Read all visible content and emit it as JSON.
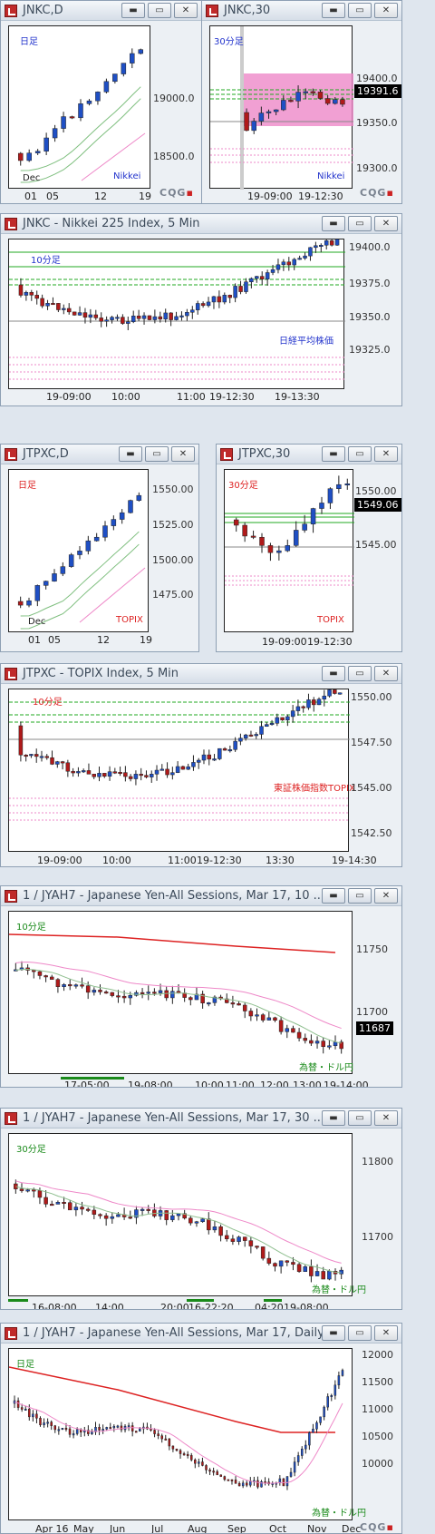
{
  "windows": [
    {
      "title": "JNKC,D",
      "period": "日足",
      "name": "Nikkei",
      "ylabels": [
        "19000.0",
        "18500.0"
      ],
      "xlabels": [
        "Dec",
        "01",
        "05",
        "12",
        "19"
      ],
      "logo": "CQG"
    },
    {
      "title": "JNKC,30",
      "period": "30分足",
      "name": "Nikkei",
      "ylabels": [
        "19400.0",
        "19350.0",
        "19300.0"
      ],
      "price": "19391.6",
      "xlabels": [
        "19-09:00",
        "19-12:30"
      ],
      "logo": "CQG"
    },
    {
      "title": "JNKC - Nikkei 225 Index, 5 Min",
      "period": "10分足",
      "name": "日経平均株価",
      "ylabels": [
        "19400.0",
        "19375.0",
        "19350.0",
        "19325.0"
      ],
      "xlabels": [
        "19-09:00",
        "10:00",
        "11:00",
        "19-12:30",
        "19-13:30"
      ]
    },
    {
      "title": "JTPXC,D",
      "period": "日足",
      "name": "TOPIX",
      "ylabels": [
        "1550.00",
        "1525.00",
        "1500.00",
        "1475.00"
      ],
      "xlabels": [
        "Dec",
        "01",
        "05",
        "12",
        "19"
      ]
    },
    {
      "title": "JTPXC,30",
      "period": "30分足",
      "name": "TOPIX",
      "ylabels": [
        "1550.00",
        "1545.00"
      ],
      "price": "1549.06",
      "xlabels": [
        "19-09:00",
        "19-12:30"
      ]
    },
    {
      "title": "JTPXC - TOPIX Index, 5 Min",
      "period": "10分足",
      "name": "東証株価指数TOPIX",
      "ylabels": [
        "1550.00",
        "1547.50",
        "1545.00",
        "1542.50"
      ],
      "xlabels": [
        "19-09:00",
        "10:00",
        "11:00",
        "19-12:30",
        "13:30",
        "19-14:30"
      ]
    },
    {
      "title": "1 / JYAH7 - Japanese Yen-All Sessions, Mar 17, 10 ...",
      "period": "10分足",
      "name": "為替・ドル円",
      "ylabels": [
        "11750",
        "11700"
      ],
      "price": "11687",
      "xlabels": [
        "17-05:00",
        "19-08:00",
        "10:00",
        "11:00",
        "12:00",
        "13:00",
        "19-14:00"
      ]
    },
    {
      "title": "1 / JYAH7 - Japanese Yen-All Sessions, Mar 17, 30 ...",
      "period": "30分足",
      "name": "為替・ドル円",
      "ylabels": [
        "11800",
        "11700"
      ],
      "xlabels": [
        "16-08:00",
        "14:00",
        "20:00",
        "16-22:20",
        "04:20",
        "19-08:00"
      ]
    },
    {
      "title": "1 / JYAH7 - Japanese Yen-All Sessions, Mar 17, Daily",
      "period": "日足",
      "name": "為替・ドル円",
      "ylabels": [
        "12000",
        "11500",
        "11000",
        "10500",
        "10000"
      ],
      "xlabels": [
        "Apr 16",
        "May",
        "Jun",
        "Jul",
        "Aug",
        "Sep",
        "Oct",
        "Nov",
        "Dec"
      ],
      "logo": "CQG"
    }
  ],
  "buttons": {
    "minimize": "▬",
    "restore": "▭",
    "close": "✕"
  },
  "colors": {
    "up": "#1f4fc4",
    "down": "#b01a1a",
    "band": "#ee88c8",
    "green": "#22aa22",
    "red_ma": "#dd2222",
    "pink_ma": "#ee88c8"
  }
}
